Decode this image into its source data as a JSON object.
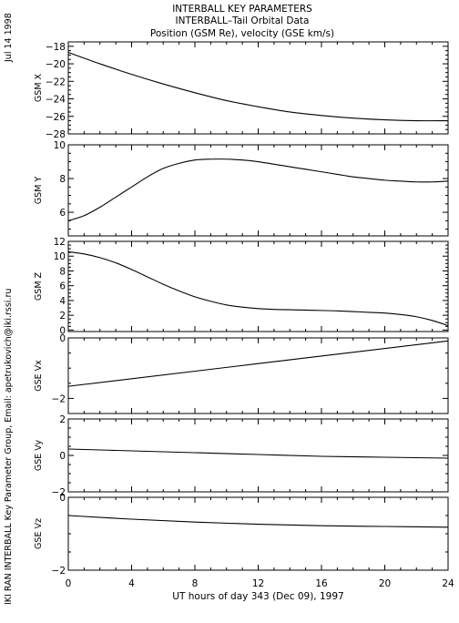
{
  "title_lines": [
    "INTERBALL KEY PARAMETERS",
    "INTERBALL–Tail Orbital Data",
    "Position (GSM Re), velocity (GSE km/s)"
  ],
  "side_date": "Jul 14 1998",
  "side_credit": "IKI RAN INTERBALL Key Parameter Group, Email: apetrukovich@iki.rssi.ru",
  "chart_data": {
    "type": "line",
    "x_axis": {
      "label": "UT hours of day 343 (Dec 09), 1997",
      "range": [
        0,
        24
      ],
      "ticks": [
        0,
        4,
        8,
        12,
        16,
        20,
        24
      ]
    },
    "panels": [
      {
        "id": "gsm-x",
        "ylabel": "GSM X",
        "ylim": [
          -28,
          -17.5
        ],
        "yticks": [
          -28,
          -26,
          -24,
          -22,
          -20,
          -18
        ],
        "x": [
          0,
          2,
          4,
          6,
          8,
          10,
          12,
          14,
          16,
          18,
          20,
          22,
          24
        ],
        "y": [
          -18.7,
          -20.0,
          -21.2,
          -22.3,
          -23.3,
          -24.2,
          -24.9,
          -25.5,
          -25.9,
          -26.2,
          -26.4,
          -26.5,
          -26.5
        ]
      },
      {
        "id": "gsm-y",
        "ylabel": "GSM Y",
        "ylim": [
          4.6,
          10
        ],
        "yticks": [
          6,
          8,
          10
        ],
        "x": [
          0,
          1,
          2,
          3,
          4,
          5,
          6,
          7,
          8,
          9,
          10,
          11,
          12,
          13,
          14,
          15,
          16,
          17,
          18,
          19,
          20,
          21,
          22,
          23,
          24
        ],
        "y": [
          5.5,
          5.8,
          6.3,
          6.9,
          7.5,
          8.1,
          8.6,
          8.9,
          9.1,
          9.15,
          9.15,
          9.1,
          9.0,
          8.85,
          8.7,
          8.55,
          8.4,
          8.25,
          8.1,
          8.0,
          7.9,
          7.85,
          7.8,
          7.8,
          7.85
        ]
      },
      {
        "id": "gsm-z",
        "ylabel": "GSM Z",
        "ylim": [
          -0.2,
          12
        ],
        "yticks": [
          0,
          2,
          4,
          6,
          8,
          10,
          12
        ],
        "x": [
          0,
          1,
          2,
          3,
          4,
          5,
          6,
          7,
          8,
          9,
          10,
          11,
          12,
          13,
          14,
          15,
          16,
          17,
          18,
          19,
          20,
          21,
          22,
          23,
          24
        ],
        "y": [
          10.6,
          10.3,
          9.8,
          9.1,
          8.2,
          7.2,
          6.2,
          5.3,
          4.5,
          3.9,
          3.4,
          3.1,
          2.9,
          2.8,
          2.75,
          2.7,
          2.65,
          2.6,
          2.5,
          2.4,
          2.3,
          2.1,
          1.8,
          1.3,
          0.6
        ]
      },
      {
        "id": "gse-vx",
        "ylabel": "GSE Vx",
        "ylim": [
          -2.5,
          0
        ],
        "yticks": [
          -2,
          0
        ],
        "x": [
          0,
          24
        ],
        "y": [
          -1.6,
          -0.1
        ]
      },
      {
        "id": "gse-vy",
        "ylabel": "GSE Vy",
        "ylim": [
          -2,
          2
        ],
        "yticks": [
          -2,
          0,
          2
        ],
        "x": [
          0,
          4,
          8,
          12,
          16,
          20,
          24
        ],
        "y": [
          0.35,
          0.25,
          0.15,
          0.05,
          -0.05,
          -0.1,
          -0.15
        ]
      },
      {
        "id": "gse-vz",
        "ylabel": "GSE Vz",
        "ylim": [
          -2,
          0
        ],
        "yticks": [
          -2,
          0
        ],
        "x": [
          0,
          4,
          8,
          12,
          16,
          20,
          24
        ],
        "y": [
          -0.5,
          -0.6,
          -0.68,
          -0.74,
          -0.78,
          -0.8,
          -0.82
        ]
      }
    ]
  }
}
